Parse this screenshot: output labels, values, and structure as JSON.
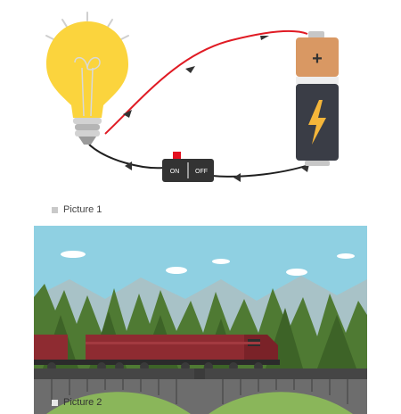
{
  "picture1": {
    "caption": "Picture 1",
    "battery_plus": "+",
    "switch_on": "ON",
    "switch_off": "OFF",
    "colors": {
      "bulb": "#fbd43d",
      "wire_positive": "#e01b24",
      "wire_negative": "#1f1f1f",
      "battery_top": "#d99863",
      "battery_body": "#3a3d46",
      "lightning": "#f5b63a",
      "switch_body": "#333333",
      "switch_button": "#e3101f"
    },
    "icons": [
      "light-bulb-icon",
      "battery-icon",
      "switch-icon",
      "lightning-bolt-icon"
    ]
  },
  "picture2": {
    "caption": "Picture 2",
    "colors": {
      "sky": "#8fd0e2",
      "mountains": "#a8c2c7",
      "trees": "#4f7a33",
      "train": "#8e2b31",
      "bridge": "#454545",
      "grass": "#8ab65a"
    }
  }
}
